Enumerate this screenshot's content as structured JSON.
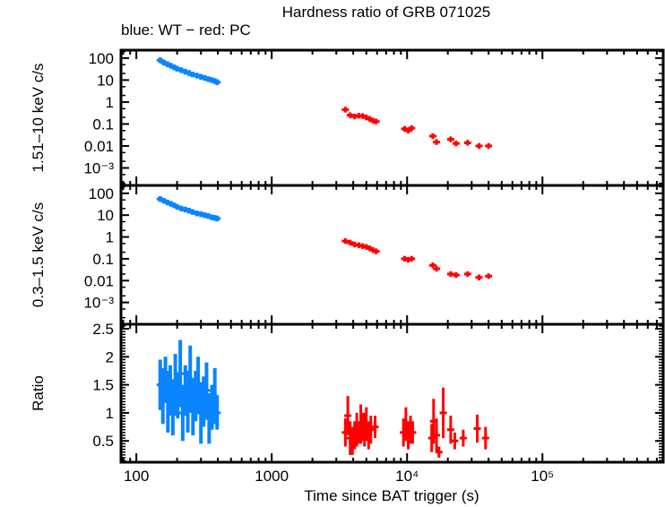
{
  "title": "Hardness ratio of GRB 071025",
  "subtitle": "blue: WT − red: PC",
  "colors": {
    "wt": "#0a84ff",
    "pc": "#ff0000",
    "axis": "#000000"
  },
  "chart_data": [
    {
      "type": "scatter",
      "panel": "hard-band",
      "ylabel": "1.51–10 keV c/s",
      "yscale": "log",
      "ylim": [
        0.00016,
        230
      ],
      "yticks": [
        100,
        10,
        1,
        0.1,
        0.01,
        0.001
      ],
      "ytick_labels": [
        "100",
        "10",
        "1",
        "0.1",
        "0.01",
        "10⁻³"
      ],
      "xscale": "log",
      "xlim": [
        77,
        780000
      ],
      "series": [
        {
          "name": "WT",
          "color": "#0a84ff",
          "x": [
            150,
            160,
            170,
            180,
            190,
            200,
            215,
            230,
            245,
            260,
            280,
            300,
            320,
            340,
            360,
            380,
            395
          ],
          "y": [
            80,
            62,
            52,
            45,
            38,
            33,
            28,
            24,
            21,
            18,
            16,
            14,
            12.5,
            11,
            10,
            9,
            8
          ]
        },
        {
          "name": "PC",
          "color": "#ff0000",
          "x": [
            3500,
            3800,
            4100,
            4400,
            4700,
            5000,
            5300,
            5600,
            5900,
            9600,
            10200,
            10800,
            15500,
            16500,
            21000,
            23000,
            28000,
            34000,
            40000
          ],
          "y": [
            0.45,
            0.25,
            0.22,
            0.24,
            0.23,
            0.2,
            0.17,
            0.14,
            0.13,
            0.06,
            0.05,
            0.065,
            0.028,
            0.015,
            0.02,
            0.013,
            0.014,
            0.01,
            0.01
          ]
        }
      ]
    },
    {
      "type": "scatter",
      "panel": "soft-band",
      "ylabel": "0.3–1.5 keV c/s",
      "yscale": "log",
      "ylim": [
        0.0001,
        230
      ],
      "yticks": [
        100,
        10,
        1,
        0.1,
        0.01,
        0.001
      ],
      "ytick_labels": [
        "100",
        "10",
        "1",
        "0.1",
        "0.01",
        "10⁻³"
      ],
      "xscale": "log",
      "xlim": [
        77,
        780000
      ],
      "series": [
        {
          "name": "WT",
          "color": "#0a84ff",
          "x": [
            150,
            160,
            170,
            180,
            190,
            200,
            215,
            230,
            245,
            260,
            280,
            300,
            320,
            340,
            360,
            380,
            395
          ],
          "y": [
            55,
            45,
            38,
            33,
            28,
            24,
            20,
            18,
            16,
            14,
            12,
            11,
            10,
            9,
            8,
            7.5,
            7
          ]
        },
        {
          "name": "PC",
          "color": "#ff0000",
          "x": [
            3500,
            3800,
            4100,
            4400,
            4700,
            5000,
            5300,
            5600,
            5900,
            9600,
            10200,
            10800,
            15500,
            16500,
            21000,
            23000,
            28000,
            34000,
            40000
          ],
          "y": [
            0.65,
            0.55,
            0.45,
            0.42,
            0.38,
            0.35,
            0.3,
            0.25,
            0.22,
            0.1,
            0.09,
            0.1,
            0.05,
            0.035,
            0.02,
            0.018,
            0.02,
            0.014,
            0.016
          ]
        }
      ]
    },
    {
      "type": "scatter",
      "panel": "ratio",
      "ylabel": "Ratio",
      "yscale": "linear",
      "ylim": [
        0.12,
        2.58
      ],
      "yticks": [
        2.5,
        2,
        1.5,
        1,
        0.5
      ],
      "ytick_labels": [
        "2.5",
        "2",
        "1.5",
        "1",
        "0.5"
      ],
      "xscale": "log",
      "xlim": [
        77,
        780000
      ],
      "xlabel": "Time since BAT trigger (s)",
      "xticks": [
        100,
        1000,
        10000,
        100000
      ],
      "xtick_labels": [
        "100",
        "1000",
        "10⁴",
        "10⁵"
      ],
      "series": [
        {
          "name": "WT",
          "color": "#0a84ff",
          "x": [
            150,
            157,
            164,
            171,
            178,
            186,
            194,
            202,
            211,
            220,
            230,
            240,
            250,
            262,
            274,
            286,
            300,
            314,
            330,
            345,
            362,
            380,
            395
          ],
          "y": [
            1.5,
            1.3,
            1.6,
            1.2,
            1.4,
            1.1,
            1.5,
            1.3,
            1.7,
            1.0,
            1.4,
            1.2,
            1.6,
            1.1,
            1.3,
            1.5,
            1.0,
            1.2,
            1.4,
            0.9,
            1.1,
            1.3,
            1.0
          ],
          "yerr": [
            0.45,
            0.5,
            0.4,
            0.55,
            0.45,
            0.5,
            0.55,
            0.4,
            0.6,
            0.5,
            0.45,
            0.55,
            0.6,
            0.5,
            0.45,
            0.5,
            0.55,
            0.45,
            0.5,
            0.45,
            0.4,
            0.5,
            0.3
          ]
        },
        {
          "name": "PC",
          "color": "#ff0000",
          "x": [
            3500,
            3650,
            3800,
            3950,
            4100,
            4250,
            4400,
            4550,
            4700,
            4850,
            5000,
            5200,
            5400,
            5800,
            9400,
            9800,
            10200,
            10600,
            11000,
            15200,
            15700,
            16500,
            17200,
            18500,
            21000,
            22500,
            26000,
            33000,
            38000
          ],
          "y": [
            0.65,
            0.95,
            0.55,
            0.5,
            0.6,
            0.7,
            0.65,
            0.8,
            0.75,
            0.7,
            0.8,
            0.6,
            0.7,
            0.75,
            0.65,
            0.8,
            0.6,
            0.7,
            0.65,
            0.55,
            0.85,
            0.6,
            0.3,
            1.0,
            0.7,
            0.5,
            0.55,
            0.72,
            0.55
          ],
          "yerr": [
            0.25,
            0.35,
            0.3,
            0.25,
            0.25,
            0.3,
            0.2,
            0.35,
            0.25,
            0.3,
            0.3,
            0.25,
            0.25,
            0.2,
            0.25,
            0.3,
            0.25,
            0.25,
            0.2,
            0.25,
            0.4,
            0.3,
            0.1,
            0.45,
            0.25,
            0.15,
            0.15,
            0.25,
            0.2
          ]
        }
      ]
    }
  ]
}
